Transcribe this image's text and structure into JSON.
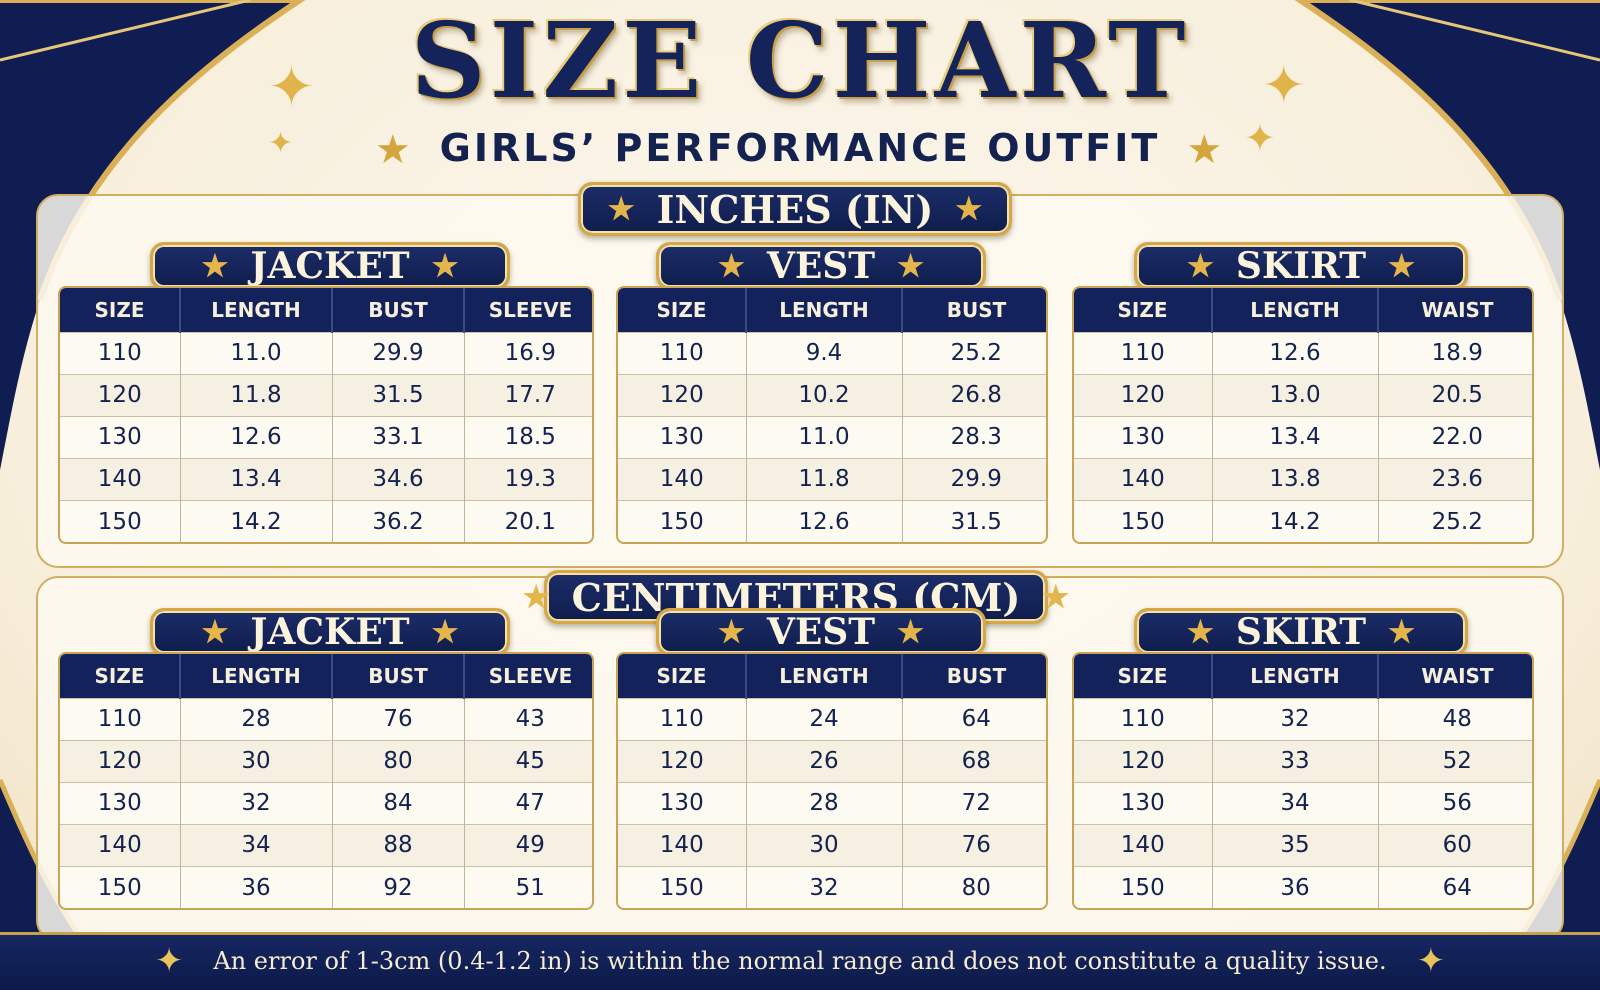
{
  "title": "SIZE CHART",
  "subtitle": "GIRLS’ PERFORMANCE OUTFIT",
  "footer_note": "An error of 1-3cm (0.4-1.2 in) is within the normal range and does not constitute a quality issue.",
  "colors": {
    "navy": "#13225a",
    "gold": "#d4a84a",
    "cream": "#fdf8ee"
  },
  "icons": [
    "star-icon",
    "sparkle-icon"
  ],
  "sections": [
    {
      "unit_label": "INCHES (IN)",
      "tables": [
        {
          "name": "JACKET",
          "headers": [
            "SIZE",
            "LENGTH",
            "BUST",
            "SLEEVE"
          ],
          "rows": [
            [
              "110",
              "11.0",
              "29.9",
              "16.9"
            ],
            [
              "120",
              "11.8",
              "31.5",
              "17.7"
            ],
            [
              "130",
              "12.6",
              "33.1",
              "18.5"
            ],
            [
              "140",
              "13.4",
              "34.6",
              "19.3"
            ],
            [
              "150",
              "14.2",
              "36.2",
              "20.1"
            ]
          ]
        },
        {
          "name": "VEST",
          "headers": [
            "SIZE",
            "LENGTH",
            "BUST"
          ],
          "rows": [
            [
              "110",
              "9.4",
              "25.2"
            ],
            [
              "120",
              "10.2",
              "26.8"
            ],
            [
              "130",
              "11.0",
              "28.3"
            ],
            [
              "140",
              "11.8",
              "29.9"
            ],
            [
              "150",
              "12.6",
              "31.5"
            ]
          ]
        },
        {
          "name": "SKIRT",
          "headers": [
            "SIZE",
            "LENGTH",
            "WAIST"
          ],
          "rows": [
            [
              "110",
              "12.6",
              "18.9"
            ],
            [
              "120",
              "13.0",
              "20.5"
            ],
            [
              "130",
              "13.4",
              "22.0"
            ],
            [
              "140",
              "13.8",
              "23.6"
            ],
            [
              "150",
              "14.2",
              "25.2"
            ]
          ]
        }
      ]
    },
    {
      "unit_label": "CENTIMETERS (CM)",
      "tables": [
        {
          "name": "JACKET",
          "headers": [
            "SIZE",
            "LENGTH",
            "BUST",
            "SLEEVE"
          ],
          "rows": [
            [
              "110",
              "28",
              "76",
              "43"
            ],
            [
              "120",
              "30",
              "80",
              "45"
            ],
            [
              "130",
              "32",
              "84",
              "47"
            ],
            [
              "140",
              "34",
              "88",
              "49"
            ],
            [
              "150",
              "36",
              "92",
              "51"
            ]
          ]
        },
        {
          "name": "VEST",
          "headers": [
            "SIZE",
            "LENGTH",
            "BUST"
          ],
          "rows": [
            [
              "110",
              "24",
              "64"
            ],
            [
              "120",
              "26",
              "68"
            ],
            [
              "130",
              "28",
              "72"
            ],
            [
              "140",
              "30",
              "76"
            ],
            [
              "150",
              "32",
              "80"
            ]
          ]
        },
        {
          "name": "SKIRT",
          "headers": [
            "SIZE",
            "LENGTH",
            "WAIST"
          ],
          "rows": [
            [
              "110",
              "32",
              "48"
            ],
            [
              "120",
              "33",
              "52"
            ],
            [
              "130",
              "34",
              "56"
            ],
            [
              "140",
              "35",
              "60"
            ],
            [
              "150",
              "36",
              "64"
            ]
          ]
        }
      ]
    }
  ]
}
